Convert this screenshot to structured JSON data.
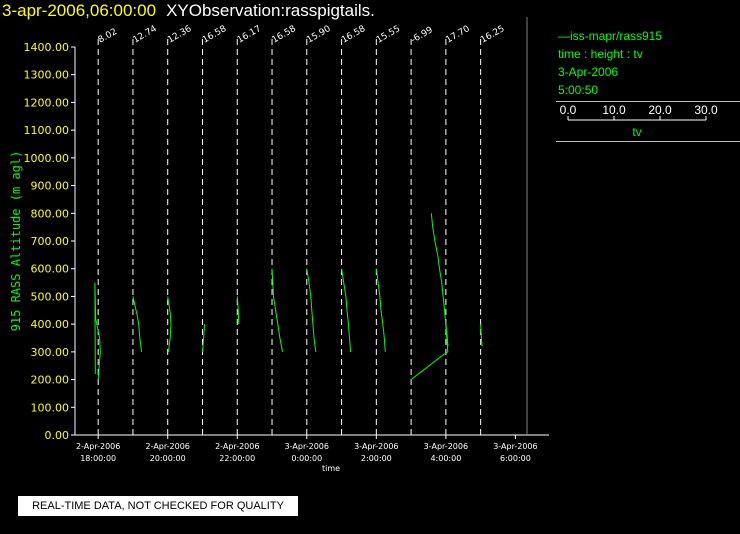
{
  "header": {
    "timestamp": "3-apr-2006,06:00:00",
    "title": "XYObservation:rasspigtails."
  },
  "legend": {
    "series_label": "—iss-mapr/rass915",
    "variables": "time : height : tv",
    "date": "3-Apr-2006",
    "time": "5:00:50",
    "scale_ticks": [
      "0.0",
      "10.0",
      "20.0",
      "30.0"
    ],
    "scale_label": "tv"
  },
  "notice": "REAL-TIME DATA, NOT CHECKED FOR QUALITY",
  "colors": {
    "series": "#00ff00",
    "tick_labels": "#ffff00",
    "axis": "#ffffff",
    "marker_lines": "#ffffff"
  },
  "chart_data": {
    "type": "line",
    "xlabel": "time",
    "ylabel": "915 RASS Altitude (m agl)",
    "xlim": [
      "2006-04-02 17:20",
      "2006-04-03 06:20"
    ],
    "ylim": [
      0,
      1400
    ],
    "y_ticks": [
      "0.00",
      "100.00",
      "200.00",
      "300.00",
      "400.00",
      "500.00",
      "600.00",
      "700.00",
      "800.00",
      "900.00",
      "1000.00",
      "1100.00",
      "1200.00",
      "1300.00",
      "1400.00"
    ],
    "x_ticks": [
      {
        "time": "2006-04-02 18:00",
        "date_label": "2-Apr-2006",
        "time_label": "18:00:00"
      },
      {
        "time": "2006-04-02 20:00",
        "date_label": "2-Apr-2006",
        "time_label": "20:00:00"
      },
      {
        "time": "2006-04-02 22:00",
        "date_label": "2-Apr-2006",
        "time_label": "22:00:00"
      },
      {
        "time": "2006-04-03 00:00",
        "date_label": "3-Apr-2006",
        "time_label": "0:00:00"
      },
      {
        "time": "2006-04-03 02:00",
        "date_label": "3-Apr-2006",
        "time_label": "2:00:00"
      },
      {
        "time": "2006-04-03 04:00",
        "date_label": "3-Apr-2006",
        "time_label": "4:00:00"
      },
      {
        "time": "2006-04-03 06:00",
        "date_label": "3-Apr-2006",
        "time_label": "6:00:00"
      }
    ],
    "profiles": [
      {
        "time": "2006-04-02 18:00",
        "label": "8.02",
        "points": [
          [
            20.9,
            200
          ],
          [
            21.5,
            300
          ],
          [
            21.3,
            350
          ],
          [
            20.2,
            420
          ],
          [
            20.1,
            480
          ],
          [
            20.0,
            550
          ],
          [
            20.1,
            220
          ]
        ]
      },
      {
        "time": "2006-04-02 19:00",
        "label": "12.74",
        "points": [
          [
            15.5,
            500
          ],
          [
            16.7,
            430
          ],
          [
            17.1,
            400
          ],
          [
            17.4,
            350
          ],
          [
            17.9,
            300
          ]
        ]
      },
      {
        "time": "2006-04-02 20:00",
        "label": "12.36",
        "points": [
          [
            14.7,
            500
          ],
          [
            15.4,
            440
          ],
          [
            15.6,
            400
          ],
          [
            15.4,
            350
          ],
          [
            14.9,
            300
          ]
        ]
      },
      {
        "time": "2006-04-02 21:00",
        "label": "16.58",
        "points": [
          [
            18.0,
            300
          ],
          [
            18.3,
            350
          ],
          [
            18.6,
            400
          ]
        ]
      },
      {
        "time": "2006-04-02 22:00",
        "label": "16.17",
        "points": [
          [
            15.8,
            500
          ],
          [
            16.1,
            450
          ],
          [
            16.2,
            400
          ]
        ]
      },
      {
        "time": "2006-04-02 23:00",
        "label": "16.58",
        "points": [
          [
            14.6,
            600
          ],
          [
            15.0,
            500
          ],
          [
            15.6,
            450
          ],
          [
            16.2,
            400
          ],
          [
            16.8,
            350
          ],
          [
            17.5,
            300
          ]
        ]
      },
      {
        "time": "2006-04-03 00:00",
        "label": "15.90",
        "points": [
          [
            15.8,
            600
          ],
          [
            16.4,
            550
          ],
          [
            16.9,
            500
          ],
          [
            17.2,
            450
          ],
          [
            17.5,
            400
          ],
          [
            17.8,
            350
          ],
          [
            18.3,
            300
          ]
        ]
      },
      {
        "time": "2006-04-03 01:00",
        "label": "16.58",
        "points": [
          [
            15.7,
            600
          ],
          [
            16.3,
            550
          ],
          [
            16.9,
            500
          ],
          [
            17.2,
            450
          ],
          [
            17.6,
            400
          ],
          [
            17.9,
            350
          ],
          [
            18.2,
            300
          ]
        ]
      },
      {
        "time": "2006-04-03 02:00",
        "label": "15.55",
        "points": [
          [
            15.0,
            600
          ],
          [
            15.5,
            550
          ],
          [
            16.0,
            500
          ],
          [
            16.3,
            450
          ],
          [
            16.8,
            400
          ],
          [
            17.2,
            350
          ],
          [
            17.5,
            300
          ]
        ]
      },
      {
        "time": "2006-04-03 04:00",
        "label": "17.70",
        "points": [
          [
            17.5,
            400
          ],
          [
            17.9,
            350
          ],
          [
            18.1,
            320
          ]
        ]
      },
      {
        "time": "2006-04-03 05:00",
        "label": "16.25",
        "points": [
          [
            16.7,
            400
          ],
          [
            16.9,
            350
          ],
          [
            17.1,
            320
          ]
        ]
      },
      {
        "time": "2006-04-03 03:00",
        "label": "-6.99",
        "points": [
          [
            1.0,
            200
          ],
          [
            2.5,
            215
          ],
          [
            4.0,
            230
          ],
          [
            5.5,
            245
          ],
          [
            7.0,
            260
          ],
          [
            8.5,
            275
          ],
          [
            10.0,
            290
          ],
          [
            11.2,
            300
          ],
          [
            10.9,
            350
          ],
          [
            10.6,
            400
          ],
          [
            10.3,
            450
          ],
          [
            9.9,
            500
          ],
          [
            9.5,
            550
          ],
          [
            8.9,
            600
          ],
          [
            8.4,
            650
          ],
          [
            7.6,
            700
          ],
          [
            7.0,
            750
          ],
          [
            6.6,
            800
          ]
        ]
      }
    ]
  }
}
